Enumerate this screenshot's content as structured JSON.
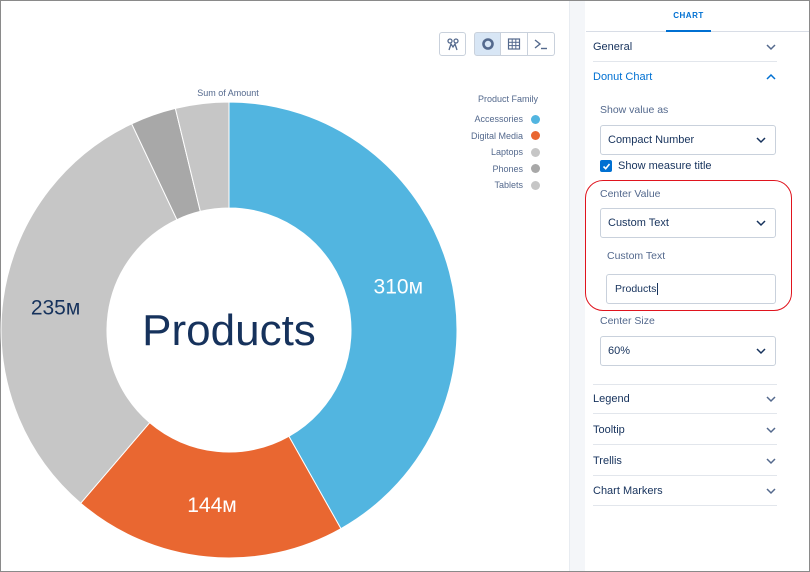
{
  "toolbar": {
    "chart_icon": "chart-settings-icon",
    "donut_icon": "donut-chart-icon",
    "table_icon": "table-icon",
    "console_icon": "console-icon"
  },
  "chart": {
    "measure_title": "Sum of Amount",
    "center_text": "Products",
    "legend": {
      "title": "Product Family",
      "items": [
        {
          "label": "Accessories",
          "color": "#52b5e0"
        },
        {
          "label": "Digital Media",
          "color": "#e96731"
        },
        {
          "label": "Laptops",
          "color": "#c6c6c6"
        },
        {
          "label": "Phones",
          "color": "#a8a8a8"
        },
        {
          "label": "Tablets",
          "color": "#c6c6c6"
        }
      ]
    }
  },
  "chart_data": {
    "type": "pie",
    "categories": [
      "Accessories",
      "Digital Media",
      "Laptops",
      "Phones",
      "Tablets"
    ],
    "values": [
      310,
      144,
      235,
      24,
      28
    ],
    "labels": [
      "310м",
      "144м",
      "235м",
      "",
      ""
    ],
    "colors": [
      "#52b5e0",
      "#e96731",
      "#c6c6c6",
      "#a8a8a8",
      "#c6c6c6"
    ],
    "title": "Sum of Amount",
    "center_text": "Products",
    "legend_position": "top-right"
  },
  "panel": {
    "tab": "CHART",
    "general": "General",
    "donut_chart": "Donut Chart",
    "show_value_as_label": "Show value as",
    "show_value_as_value": "Compact Number",
    "show_measure_title": "Show measure title",
    "center_value_label": "Center Value",
    "center_value_value": "Custom Text",
    "custom_text_label": "Custom Text",
    "custom_text_value": "Products",
    "center_size_label": "Center Size",
    "center_size_value": "60%",
    "legend": "Legend",
    "tooltip": "Tooltip",
    "trellis": "Trellis",
    "chart_markers": "Chart Markers"
  }
}
